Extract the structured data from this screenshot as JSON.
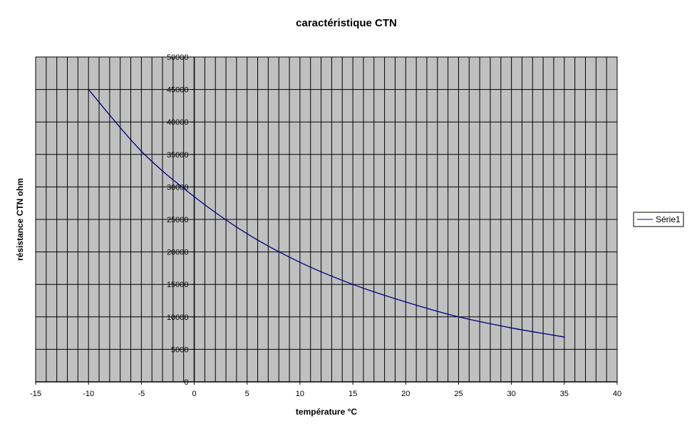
{
  "colors": {
    "plot_background": "#c0c0c0",
    "gridline": "#000000",
    "series_line": "#000080",
    "background": "#ffffff"
  },
  "chart_data": {
    "type": "scatter",
    "title": "caractéristique CTN",
    "xlabel": "température °C",
    "ylabel": "résistance CTN ohm",
    "xlim": [
      -15,
      40
    ],
    "ylim": [
      0,
      50000
    ],
    "x_major_ticks": [
      "-15",
      "-10",
      "-5",
      "0",
      "5",
      "10",
      "15",
      "20",
      "25",
      "30",
      "35",
      "40"
    ],
    "y_major_ticks": [
      "0",
      "5000",
      "10000",
      "15000",
      "20000",
      "25000",
      "30000",
      "35000",
      "40000",
      "45000",
      "50000"
    ],
    "x_major_step": 5,
    "x_minor_step": 1,
    "y_major_step": 5000,
    "grid": true,
    "legend_position": "right",
    "series": [
      {
        "name": "Série1",
        "x": [
          -10,
          -5,
          0,
          5,
          10,
          15,
          20,
          25,
          30,
          35
        ],
        "y": [
          45000,
          35500,
          28500,
          22800,
          18400,
          15000,
          12300,
          10000,
          8300,
          6900
        ]
      }
    ]
  }
}
